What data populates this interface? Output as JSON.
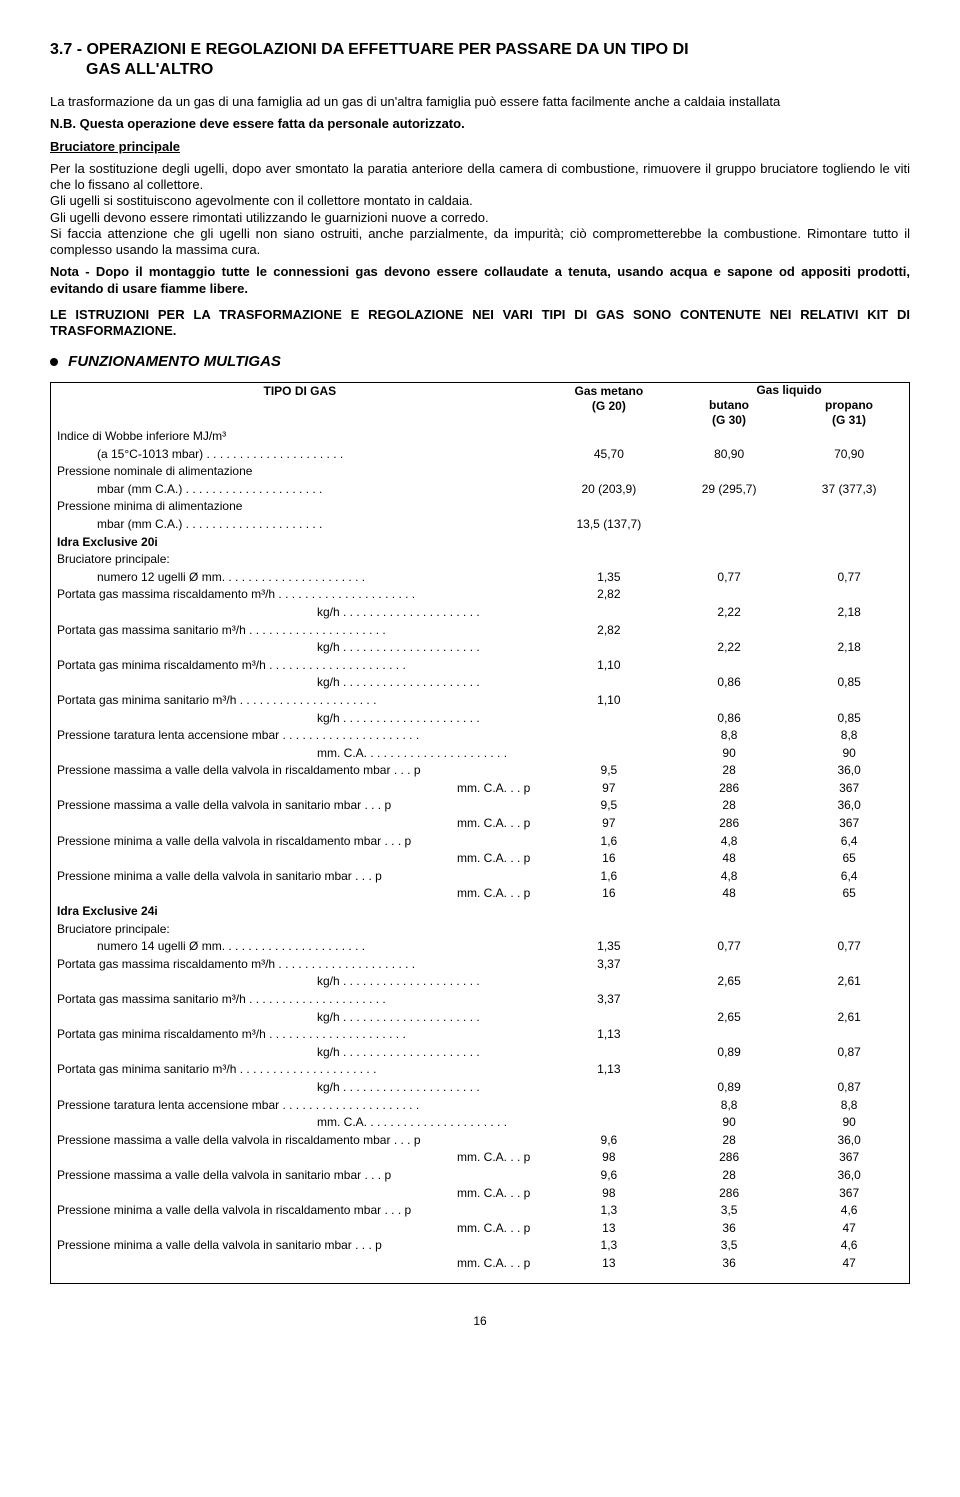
{
  "section": {
    "number": "3.7",
    "title_line1": "3.7 - OPERAZIONI E REGOLAZIONI DA EFFETTUARE PER PASSARE DA UN TIPO DI",
    "title_line2": "GAS ALL'ALTRO"
  },
  "intro": "La trasformazione da un gas di una famiglia ad un gas di un'altra famiglia può essere fatta facilmente anche a caldaia installata",
  "nb": "N.B. Questa operazione deve essere fatta da personale autorizzato.",
  "bruciatore_heading": "Bruciatore principale",
  "bruciatore_body": "Per la sostituzione degli ugelli, dopo aver smontato la paratia anteriore della camera di combustione, rimuovere il gruppo bruciatore togliendo le viti che lo fissano al collettore.\nGli ugelli si sostituiscono agevolmente con il collettore montato in caldaia.\nGli ugelli devono essere rimontati utilizzando le guarnizioni nuove a corredo.\nSi faccia attenzione che gli ugelli non siano ostruiti, anche parzialmente, da impurità; ciò comprometterebbe la combustione. Rimontare tutto il complesso usando la massima cura.",
  "nota": "Nota - Dopo il montaggio tutte le connessioni gas devono essere collaudate a tenuta, usando acqua e sapone od appositi prodotti, evitando di usare fiamme libere.",
  "istruzioni": "LE ISTRUZIONI PER LA TRASFORMAZIONE E REGOLAZIONE NEI VARI TIPI DI GAS SONO CONTENUTE NEI RELATIVI KIT DI TRASFORMAZIONE.",
  "multigas_heading": "FUNZIONAMENTO MULTIGAS",
  "table": {
    "header": {
      "tipo": "TIPO DI GAS",
      "metano": "Gas metano",
      "metano_sub": "(G 20)",
      "liquido": "Gas liquido",
      "butano": "butano",
      "butano_sub": "(G 30)",
      "propano": "propano",
      "propano_sub": "(G 31)"
    },
    "rows": [
      {
        "label": "Indice di Wobbe inferiore MJ/m³",
        "g20": "",
        "g30": "",
        "g31": ""
      },
      {
        "label": "(a 15°C-1013 mbar)",
        "indent": 1,
        "dots": 1,
        "g20": "45,70",
        "g30": "80,90",
        "g31": "70,90"
      },
      {
        "label": "Pressione nominale di alimentazione",
        "g20": "",
        "g30": "",
        "g31": ""
      },
      {
        "label": "mbar (mm C.A.)",
        "indent": 1,
        "dots": 1,
        "g20": "20 (203,9)",
        "g30": "29 (295,7)",
        "g31": "37 (377,3)"
      },
      {
        "label": "Pressione minima di alimentazione",
        "g20": "",
        "g30": "",
        "g31": ""
      },
      {
        "label": "mbar (mm C.A.)",
        "indent": 1,
        "dots": 1,
        "g20": "13,5 (137,7)",
        "g30": "",
        "g31": ""
      },
      {
        "label": "Idra Exclusive 20i",
        "bold": 1,
        "g20": "",
        "g30": "",
        "g31": ""
      },
      {
        "label": "Bruciatore principale:",
        "g20": "",
        "g30": "",
        "g31": ""
      },
      {
        "label": "numero 12 ugelli Ø mm.",
        "indent": 1,
        "dots": 1,
        "g20": "1,35",
        "g30": "0,77",
        "g31": "0,77"
      },
      {
        "label": "Portata gas massima riscaldamento   m³/h",
        "dots": 1,
        "g20": "2,82",
        "g30": "",
        "g31": ""
      },
      {
        "label": "kg/h",
        "indent": 2,
        "dots": 1,
        "g20": "",
        "g30": "2,22",
        "g31": "2,18"
      },
      {
        "label": "Portata gas massima sanitario           m³/h",
        "dots": 1,
        "g20": "2,82",
        "g30": "",
        "g31": ""
      },
      {
        "label": "kg/h",
        "indent": 2,
        "dots": 1,
        "g20": "",
        "g30": "2,22",
        "g31": "2,18"
      },
      {
        "label": "Portata gas minima riscaldamento      m³/h",
        "dots": 1,
        "g20": "1,10",
        "g30": "",
        "g31": ""
      },
      {
        "label": "kg/h",
        "indent": 2,
        "dots": 1,
        "g20": "",
        "g30": "0,86",
        "g31": "0,85"
      },
      {
        "label": "Portata gas minima sanitario              m³/h",
        "dots": 1,
        "g20": "1,10",
        "g30": "",
        "g31": ""
      },
      {
        "label": "kg/h",
        "indent": 2,
        "dots": 1,
        "g20": "",
        "g30": "0,86",
        "g31": "0,85"
      },
      {
        "label": "Pressione taratura lenta accensione   mbar",
        "dots": 1,
        "g20": "",
        "g30": "8,8",
        "g31": "8,8"
      },
      {
        "label": "mm. C.A.",
        "indent": 2,
        "dots": 1,
        "g20": "",
        "g30": "90",
        "g31": "90"
      },
      {
        "label": "Pressione massima a valle della valvola in riscaldamento   mbar   .  .  . p",
        "g20": "9,5",
        "g30": "28",
        "g31": "36,0"
      },
      {
        "label": "mm. C.A. .  . p",
        "indent": 3,
        "g20": "97",
        "g30": "286",
        "g31": "367"
      },
      {
        "label": "Pressione massima a valle della valvola in sanitario            mbar   .  .  . p",
        "g20": "9,5",
        "g30": "28",
        "g31": "36,0"
      },
      {
        "label": "mm. C.A. .  . p",
        "indent": 3,
        "g20": "97",
        "g30": "286",
        "g31": "367"
      },
      {
        "label": "Pressione minima a valle della valvola in riscaldamento     mbar   .  .  . p",
        "g20": "1,6",
        "g30": "4,8",
        "g31": "6,4"
      },
      {
        "label": "mm. C.A. .  . p",
        "indent": 3,
        "g20": "16",
        "g30": "48",
        "g31": "65"
      },
      {
        "label": "Pressione minima a valle della valvola in sanitario              mbar   .  .  . p",
        "g20": "1,6",
        "g30": "4,8",
        "g31": "6,4"
      },
      {
        "label": "mm. C.A. .  . p",
        "indent": 3,
        "g20": "16",
        "g30": "48",
        "g31": "65"
      },
      {
        "label": "Idra Exclusive 24i",
        "bold": 1,
        "g20": "",
        "g30": "",
        "g31": ""
      },
      {
        "label": "Bruciatore principale:",
        "g20": "",
        "g30": "",
        "g31": ""
      },
      {
        "label": "numero 14 ugelli Ø mm.",
        "indent": 1,
        "dots": 1,
        "g20": "1,35",
        "g30": "0,77",
        "g31": "0,77"
      },
      {
        "label": "Portata gas massima riscaldamento   m³/h",
        "dots": 1,
        "g20": "3,37",
        "g30": "",
        "g31": ""
      },
      {
        "label": "kg/h",
        "indent": 2,
        "dots": 1,
        "g20": "",
        "g30": "2,65",
        "g31": "2,61"
      },
      {
        "label": "Portata gas massima sanitario           m³/h",
        "dots": 1,
        "g20": "3,37",
        "g30": "",
        "g31": ""
      },
      {
        "label": "kg/h",
        "indent": 2,
        "dots": 1,
        "g20": "",
        "g30": "2,65",
        "g31": "2,61"
      },
      {
        "label": "Portata gas minima riscaldamento      m³/h",
        "dots": 1,
        "g20": "1,13",
        "g30": "",
        "g31": ""
      },
      {
        "label": "kg/h",
        "indent": 2,
        "dots": 1,
        "g20": "",
        "g30": "0,89",
        "g31": "0,87"
      },
      {
        "label": "Portata gas minima sanitario              m³/h",
        "dots": 1,
        "g20": "1,13",
        "g30": "",
        "g31": ""
      },
      {
        "label": "kg/h",
        "indent": 2,
        "dots": 1,
        "g20": "",
        "g30": "0,89",
        "g31": "0,87"
      },
      {
        "label": "Pressione taratura lenta accensione   mbar",
        "dots": 1,
        "g20": "",
        "g30": "8,8",
        "g31": "8,8"
      },
      {
        "label": "mm. C.A.",
        "indent": 2,
        "dots": 1,
        "g20": "",
        "g30": "90",
        "g31": "90"
      },
      {
        "label": "Pressione massima a valle della valvola in riscaldamento   mbar   .  .  . p",
        "g20": "9,6",
        "g30": "28",
        "g31": "36,0"
      },
      {
        "label": "mm. C.A. .  . p",
        "indent": 3,
        "g20": "98",
        "g30": "286",
        "g31": "367"
      },
      {
        "label": "Pressione massima a valle della valvola in sanitario            mbar   .  .  . p",
        "g20": "9,6",
        "g30": "28",
        "g31": "36,0"
      },
      {
        "label": "mm. C.A. .  . p",
        "indent": 3,
        "g20": "98",
        "g30": "286",
        "g31": "367"
      },
      {
        "label": "Pressione minima a valle della valvola in riscaldamento     mbar   .  .  . p",
        "g20": "1,3",
        "g30": "3,5",
        "g31": "4,6"
      },
      {
        "label": "mm. C.A. .  . p",
        "indent": 3,
        "g20": "13",
        "g30": "36",
        "g31": "47"
      },
      {
        "label": "Pressione minima a valle della valvola in sanitario              mbar   .  .  . p",
        "g20": "1,3",
        "g30": "3,5",
        "g31": "4,6"
      },
      {
        "label": "mm. C.A. .  . p",
        "indent": 3,
        "g20": "13",
        "g30": "36",
        "g31": "47"
      }
    ]
  },
  "pagenum": "16"
}
